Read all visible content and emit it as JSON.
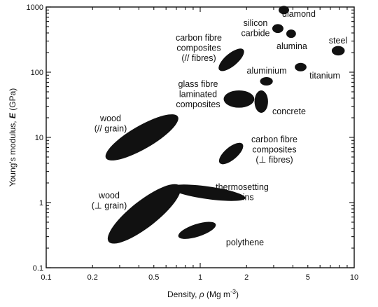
{
  "chart_data": {
    "type": "scatter",
    "xlabel_prefix": "Density, ",
    "xlabel_symbol": "ρ",
    "xlabel_unit": " (Mg m",
    "xlabel_unit_sup": "-3",
    "xlabel_unit_close": ")",
    "ylabel_prefix": "Young's modulus, ",
    "ylabel_symbol": "E",
    "ylabel_unit": " (GPa)",
    "xscale": "log",
    "yscale": "log",
    "xlim": [
      0.1,
      10
    ],
    "ylim": [
      0.1,
      1000
    ],
    "x_ticks": [
      0.1,
      0.2,
      0.5,
      1,
      2,
      5,
      10
    ],
    "x_tick_labels": [
      "0.1",
      "0.2",
      "0.5",
      "1",
      "2",
      "5",
      "10"
    ],
    "y_ticks": [
      0.1,
      1,
      10,
      100,
      1000
    ],
    "y_tick_labels": [
      "0.1",
      "1",
      "10",
      "100",
      "1000"
    ],
    "grid": false,
    "materials": [
      {
        "label_lines": [
          "diamond"
        ],
        "density": 3.5,
        "modulus_range": [
          850,
          950
        ],
        "density_range": [
          3.3,
          3.7
        ],
        "shape": "ellipse"
      },
      {
        "label_lines": [
          "silicon",
          "carbide"
        ],
        "density": 3.2,
        "modulus_range": [
          420,
          520
        ],
        "density_range": [
          3.0,
          3.4
        ],
        "shape": "ellipse"
      },
      {
        "label_lines": [
          "alumina"
        ],
        "density": 3.9,
        "modulus_range": [
          360,
          420
        ],
        "density_range": [
          3.7,
          4.1
        ],
        "shape": "ellipse"
      },
      {
        "label_lines": [
          "steel"
        ],
        "density": 7.9,
        "modulus_range": [
          190,
          240
        ],
        "density_range": [
          7.3,
          8.5
        ],
        "shape": "ellipse"
      },
      {
        "label_lines": [
          "titanium"
        ],
        "density": 4.5,
        "modulus_range": [
          110,
          130
        ],
        "density_range": [
          4.2,
          4.8
        ],
        "shape": "ellipse"
      },
      {
        "label_lines": [
          "aluminium"
        ],
        "density": 2.7,
        "modulus_range": [
          70,
          75
        ],
        "density_range": [
          2.5,
          2.9
        ],
        "shape": "ellipse"
      },
      {
        "label_lines": [
          "carbon fibre",
          "composites",
          "(// fibres)"
        ],
        "density": 1.6,
        "modulus_range": [
          100,
          240
        ],
        "density_range": [
          1.45,
          1.75
        ],
        "shape": "ellipse"
      },
      {
        "label_lines": [
          "glass fibre",
          "laminated",
          "composites"
        ],
        "density": 1.8,
        "modulus_range": [
          30,
          50
        ],
        "density_range": [
          1.45,
          2.2
        ],
        "shape": "ellipse"
      },
      {
        "label_lines": [
          "concrete"
        ],
        "density": 2.5,
        "modulus_range": [
          25,
          50
        ],
        "density_range": [
          2.3,
          2.7
        ],
        "shape": "ellipse"
      },
      {
        "label_lines": [
          "wood",
          "(// grain)"
        ],
        "density": 0.45,
        "modulus_range": [
          5,
          20
        ],
        "density_range": [
          0.25,
          0.7
        ],
        "shape": "ellipse"
      },
      {
        "label_lines": [
          "carbon fibre",
          "composites",
          "(⊥ fibres)"
        ],
        "density": 1.6,
        "modulus_range": [
          4,
          8
        ],
        "density_range": [
          1.4,
          1.8
        ],
        "shape": "ellipse"
      },
      {
        "label_lines": [
          "thermosetting",
          "resins"
        ],
        "density": 1.1,
        "modulus_range": [
          0.4,
          5
        ],
        "density_range": [
          1.0,
          1.25
        ],
        "shape": "ellipse"
      },
      {
        "label_lines": [
          "wood",
          "(⊥ grain)"
        ],
        "density": 0.45,
        "modulus_range": [
          0.3,
          1.5
        ],
        "density_range": [
          0.25,
          0.75
        ],
        "shape": "ellipse"
      },
      {
        "label_lines": [
          "polythene"
        ],
        "density": 0.95,
        "modulus_range": [
          0.2,
          0.7
        ],
        "density_range": [
          0.91,
          1.0
        ],
        "shape": "ellipse"
      }
    ]
  }
}
